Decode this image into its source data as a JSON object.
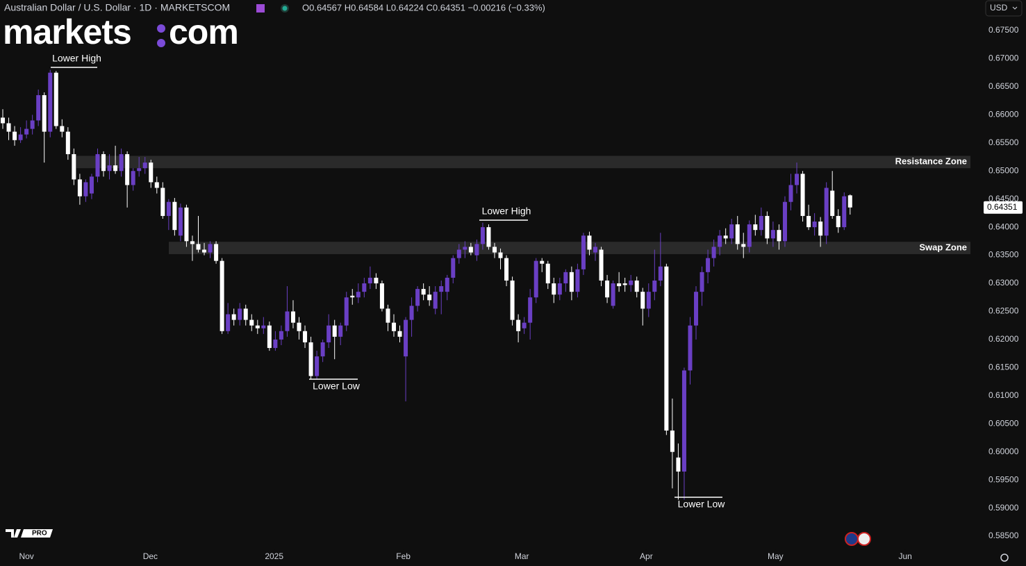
{
  "chart_data": {
    "type": "candlestick",
    "title": "Australian Dollar / U.S. Dollar · 1D · MARKETSCOM",
    "ohlc_text": "O0.64567 H0.64584 L0.64224 C0.64351 −0.00216 (−0.33%)",
    "currency": "USD",
    "brand": [
      "markets",
      "com"
    ],
    "badge": "PRO",
    "up_color": "#6a3fc4",
    "down_color": "#ffffff",
    "ylim": [
      0.58278,
      0.68044
    ],
    "xlim": [
      -0.47,
      164.83
    ],
    "yticks": [
      {
        "value": 0.585,
        "label": "0.58500"
      },
      {
        "value": 0.59,
        "label": "0.59000"
      },
      {
        "value": 0.595,
        "label": "0.59500"
      },
      {
        "value": 0.6,
        "label": "0.60000"
      },
      {
        "value": 0.605,
        "label": "0.60500"
      },
      {
        "value": 0.61,
        "label": "0.61000"
      },
      {
        "value": 0.615,
        "label": "0.61500"
      },
      {
        "value": 0.62,
        "label": "0.62000"
      },
      {
        "value": 0.625,
        "label": "0.62500"
      },
      {
        "value": 0.63,
        "label": "0.63000"
      },
      {
        "value": 0.635,
        "label": "0.63500"
      },
      {
        "value": 0.64,
        "label": "0.64000"
      },
      {
        "value": 0.645,
        "label": "0.64500"
      },
      {
        "value": 0.65,
        "label": "0.65000"
      },
      {
        "value": 0.655,
        "label": "0.65500"
      },
      {
        "value": 0.66,
        "label": "0.66000"
      },
      {
        "value": 0.665,
        "label": "0.66500"
      },
      {
        "value": 0.67,
        "label": "0.67000"
      },
      {
        "value": 0.675,
        "label": "0.67500"
      }
    ],
    "xticks": [
      {
        "value": 4,
        "label": "Nov"
      },
      {
        "value": 24.9,
        "label": "Dec"
      },
      {
        "value": 45.8,
        "label": "2025"
      },
      {
        "value": 67.6,
        "label": "Feb"
      },
      {
        "value": 87.6,
        "label": "Mar"
      },
      {
        "value": 108.6,
        "label": "Apr"
      },
      {
        "value": 130.4,
        "label": "May"
      },
      {
        "value": 152.3,
        "label": "Jun"
      }
    ],
    "price_label": {
      "value": 0.64351,
      "label": "0.64351"
    },
    "zones": [
      {
        "label": "Resistance Zone",
        "range": [
          0.6505,
          0.6527
        ]
      },
      {
        "label": "Swap Zone",
        "range": [
          0.6352,
          0.6374
        ]
      }
    ],
    "annotations": [
      "Lower High",
      "Lower Low",
      "Lower High",
      "Lower Low"
    ],
    "candles": [
      [
        0.6595,
        0.661,
        0.6575,
        0.6585
      ],
      [
        0.6585,
        0.6595,
        0.6555,
        0.657
      ],
      [
        0.657,
        0.658,
        0.6545,
        0.6555
      ],
      [
        0.6555,
        0.6578,
        0.655,
        0.6565
      ],
      [
        0.6565,
        0.659,
        0.6558,
        0.6575
      ],
      [
        0.6575,
        0.66,
        0.6565,
        0.659
      ],
      [
        0.659,
        0.6645,
        0.658,
        0.6635
      ],
      [
        0.6635,
        0.664,
        0.6515,
        0.657
      ],
      [
        0.657,
        0.668,
        0.656,
        0.6675
      ],
      [
        0.6675,
        0.6678,
        0.6575,
        0.658
      ],
      [
        0.658,
        0.6592,
        0.656,
        0.657
      ],
      [
        0.657,
        0.6578,
        0.652,
        0.653
      ],
      [
        0.653,
        0.654,
        0.6475,
        0.6485
      ],
      [
        0.6485,
        0.6495,
        0.644,
        0.6455
      ],
      [
        0.6455,
        0.6485,
        0.6445,
        0.648
      ],
      [
        0.646,
        0.6495,
        0.645,
        0.649
      ],
      [
        0.649,
        0.654,
        0.648,
        0.653
      ],
      [
        0.653,
        0.6535,
        0.649,
        0.65
      ],
      [
        0.65,
        0.653,
        0.6485,
        0.651
      ],
      [
        0.651,
        0.6545,
        0.6495,
        0.65
      ],
      [
        0.65,
        0.654,
        0.649,
        0.653
      ],
      [
        0.653,
        0.6535,
        0.6435,
        0.6475
      ],
      [
        0.6475,
        0.6505,
        0.6465,
        0.65
      ],
      [
        0.65,
        0.6525,
        0.649,
        0.6505
      ],
      [
        0.6505,
        0.6525,
        0.6495,
        0.6515
      ],
      [
        0.6515,
        0.652,
        0.647,
        0.648
      ],
      [
        0.648,
        0.649,
        0.646,
        0.647
      ],
      [
        0.647,
        0.648,
        0.6415,
        0.642
      ],
      [
        0.642,
        0.645,
        0.6395,
        0.6445
      ],
      [
        0.6445,
        0.6452,
        0.6385,
        0.6395
      ],
      [
        0.6385,
        0.6442,
        0.6375,
        0.6435
      ],
      [
        0.6435,
        0.644,
        0.6365,
        0.6375
      ],
      [
        0.6375,
        0.6385,
        0.634,
        0.637
      ],
      [
        0.637,
        0.642,
        0.6355,
        0.636
      ],
      [
        0.636,
        0.6372,
        0.635,
        0.6355
      ],
      [
        0.6355,
        0.6375,
        0.6345,
        0.637
      ],
      [
        0.637,
        0.6375,
        0.6335,
        0.634
      ],
      [
        0.634,
        0.6345,
        0.621,
        0.6215
      ],
      [
        0.6215,
        0.6265,
        0.621,
        0.6245
      ],
      [
        0.6245,
        0.6255,
        0.6225,
        0.6235
      ],
      [
        0.6235,
        0.6265,
        0.6225,
        0.6255
      ],
      [
        0.6255,
        0.6262,
        0.6225,
        0.6235
      ],
      [
        0.6235,
        0.6245,
        0.6215,
        0.6225
      ],
      [
        0.6225,
        0.6235,
        0.621,
        0.622
      ],
      [
        0.622,
        0.624,
        0.621,
        0.6225
      ],
      [
        0.6225,
        0.6232,
        0.618,
        0.6185
      ],
      [
        0.6185,
        0.6215,
        0.618,
        0.62
      ],
      [
        0.62,
        0.6225,
        0.619,
        0.6215
      ],
      [
        0.6215,
        0.6295,
        0.6205,
        0.625
      ],
      [
        0.625,
        0.627,
        0.622,
        0.623
      ],
      [
        0.623,
        0.624,
        0.62,
        0.6215
      ],
      [
        0.6215,
        0.6225,
        0.6185,
        0.6195
      ],
      [
        0.6195,
        0.6205,
        0.613,
        0.6135
      ],
      [
        0.6135,
        0.618,
        0.613,
        0.617
      ],
      [
        0.617,
        0.62,
        0.616,
        0.6195
      ],
      [
        0.6195,
        0.6245,
        0.6185,
        0.6225
      ],
      [
        0.6225,
        0.6235,
        0.6165,
        0.6205
      ],
      [
        0.6205,
        0.623,
        0.619,
        0.6225
      ],
      [
        0.6225,
        0.6285,
        0.6215,
        0.6275
      ],
      [
        0.6278,
        0.629,
        0.6262,
        0.6275
      ],
      [
        0.6275,
        0.63,
        0.6265,
        0.6285
      ],
      [
        0.6285,
        0.631,
        0.6275,
        0.63
      ],
      [
        0.63,
        0.633,
        0.629,
        0.631
      ],
      [
        0.631,
        0.6318,
        0.629,
        0.63
      ],
      [
        0.63,
        0.6305,
        0.625,
        0.6255
      ],
      [
        0.6255,
        0.6262,
        0.6215,
        0.623
      ],
      [
        0.623,
        0.6245,
        0.6205,
        0.6215
      ],
      [
        0.6215,
        0.6225,
        0.6195,
        0.6205
      ],
      [
        0.617,
        0.624,
        0.609,
        0.6235
      ],
      [
        0.6235,
        0.6275,
        0.6205,
        0.626
      ],
      [
        0.626,
        0.6295,
        0.625,
        0.629
      ],
      [
        0.629,
        0.63,
        0.627,
        0.628
      ],
      [
        0.628,
        0.6295,
        0.626,
        0.627
      ],
      [
        0.6255,
        0.6295,
        0.6245,
        0.6285
      ],
      [
        0.6285,
        0.6305,
        0.6245,
        0.6295
      ],
      [
        0.6285,
        0.6315,
        0.627,
        0.631
      ],
      [
        0.631,
        0.635,
        0.63,
        0.6345
      ],
      [
        0.6345,
        0.637,
        0.6335,
        0.636
      ],
      [
        0.636,
        0.6375,
        0.6345,
        0.6365
      ],
      [
        0.6365,
        0.6372,
        0.635,
        0.6355
      ],
      [
        0.635,
        0.6378,
        0.634,
        0.637
      ],
      [
        0.637,
        0.6408,
        0.636,
        0.64
      ],
      [
        0.64,
        0.6405,
        0.636,
        0.6365
      ],
      [
        0.6365,
        0.6372,
        0.6345,
        0.6355
      ],
      [
        0.6355,
        0.6362,
        0.6325,
        0.6345
      ],
      [
        0.6345,
        0.635,
        0.6295,
        0.6305
      ],
      [
        0.6305,
        0.6312,
        0.6225,
        0.6235
      ],
      [
        0.6235,
        0.6245,
        0.6195,
        0.6215
      ],
      [
        0.622,
        0.624,
        0.621,
        0.623
      ],
      [
        0.623,
        0.629,
        0.62,
        0.6275
      ],
      [
        0.6275,
        0.6345,
        0.6265,
        0.634
      ],
      [
        0.634,
        0.6345,
        0.632,
        0.6335
      ],
      [
        0.6335,
        0.634,
        0.629,
        0.63
      ],
      [
        0.63,
        0.631,
        0.6265,
        0.628
      ],
      [
        0.628,
        0.631,
        0.627,
        0.63
      ],
      [
        0.63,
        0.6325,
        0.6285,
        0.632
      ],
      [
        0.632,
        0.633,
        0.627,
        0.6285
      ],
      [
        0.6285,
        0.6335,
        0.6275,
        0.6325
      ],
      [
        0.6325,
        0.639,
        0.6315,
        0.6385
      ],
      [
        0.6385,
        0.6392,
        0.635,
        0.636
      ],
      [
        0.6355,
        0.6372,
        0.634,
        0.6365
      ],
      [
        0.636,
        0.6365,
        0.6295,
        0.6305
      ],
      [
        0.6305,
        0.6315,
        0.6265,
        0.6275
      ],
      [
        0.626,
        0.6305,
        0.6255,
        0.63
      ],
      [
        0.63,
        0.632,
        0.6285,
        0.6295
      ],
      [
        0.63,
        0.631,
        0.6285,
        0.6297
      ],
      [
        0.6297,
        0.6315,
        0.6285,
        0.6305
      ],
      [
        0.6305,
        0.6312,
        0.6275,
        0.6285
      ],
      [
        0.6285,
        0.6292,
        0.6225,
        0.6255
      ],
      [
        0.6255,
        0.63,
        0.624,
        0.6285
      ],
      [
        0.6285,
        0.636,
        0.627,
        0.6305
      ],
      [
        0.6305,
        0.639,
        0.6295,
        0.633
      ],
      [
        0.633,
        0.6335,
        0.603,
        0.6038
      ],
      [
        0.6038,
        0.6095,
        0.5935,
        0.6
      ],
      [
        0.599,
        0.6015,
        0.5915,
        0.5965
      ],
      [
        0.5965,
        0.615,
        0.5915,
        0.6145
      ],
      [
        0.6145,
        0.624,
        0.612,
        0.6225
      ],
      [
        0.6225,
        0.6295,
        0.62,
        0.6285
      ],
      [
        0.6285,
        0.633,
        0.626,
        0.632
      ],
      [
        0.632,
        0.636,
        0.63,
        0.6345
      ],
      [
        0.6345,
        0.6378,
        0.633,
        0.6365
      ],
      [
        0.6365,
        0.6395,
        0.635,
        0.6385
      ],
      [
        0.6385,
        0.6398,
        0.637,
        0.638
      ],
      [
        0.638,
        0.6415,
        0.637,
        0.6405
      ],
      [
        0.6405,
        0.642,
        0.636,
        0.637
      ],
      [
        0.637,
        0.639,
        0.6345,
        0.6365
      ],
      [
        0.6365,
        0.6412,
        0.6355,
        0.6405
      ],
      [
        0.6405,
        0.6422,
        0.6385,
        0.6395
      ],
      [
        0.6395,
        0.6435,
        0.6385,
        0.642
      ],
      [
        0.642,
        0.6428,
        0.637,
        0.638
      ],
      [
        0.638,
        0.641,
        0.6365,
        0.6395
      ],
      [
        0.6395,
        0.6405,
        0.636,
        0.6375
      ],
      [
        0.6375,
        0.6455,
        0.6365,
        0.6445
      ],
      [
        0.6445,
        0.6495,
        0.643,
        0.6475
      ],
      [
        0.6475,
        0.6515,
        0.646,
        0.6495
      ],
      [
        0.6495,
        0.65,
        0.641,
        0.642
      ],
      [
        0.642,
        0.644,
        0.6395,
        0.64
      ],
      [
        0.64,
        0.6425,
        0.6385,
        0.641
      ],
      [
        0.641,
        0.6418,
        0.6365,
        0.6385
      ],
      [
        0.6385,
        0.648,
        0.637,
        0.647
      ],
      [
        0.6465,
        0.65,
        0.6415,
        0.642
      ],
      [
        0.642,
        0.6432,
        0.639,
        0.64
      ],
      [
        0.64,
        0.6462,
        0.6395,
        0.6455
      ],
      [
        0.64567,
        0.64584,
        0.64224,
        0.64351
      ]
    ]
  }
}
